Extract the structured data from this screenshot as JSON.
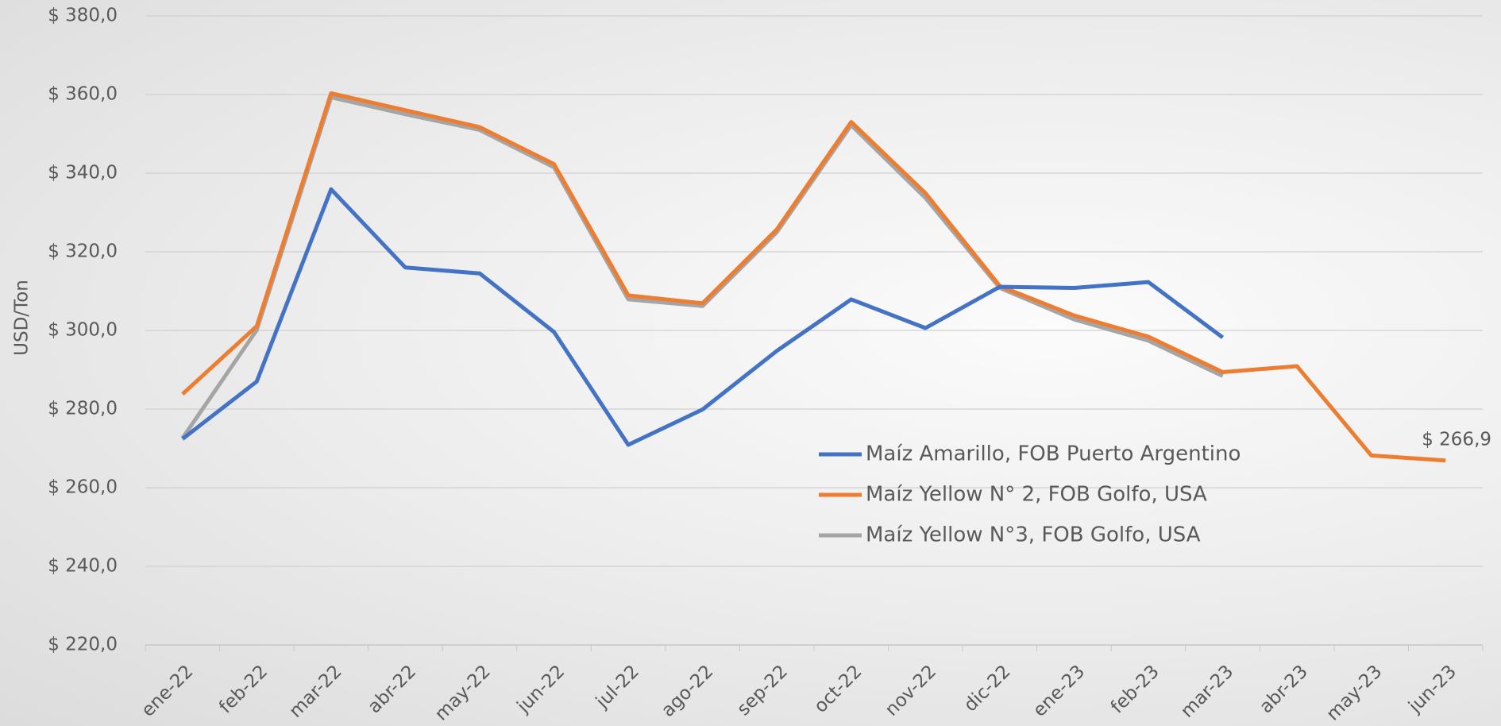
{
  "chart_data": {
    "type": "line",
    "y_label": "USD/Ton",
    "categories": [
      "ene-22",
      "feb-22",
      "mar-22",
      "abr-22",
      "may-22",
      "jun-22",
      "jul-22",
      "ago-22",
      "sep-22",
      "oct-22",
      "nov-22",
      "dic-22",
      "ene-23",
      "feb-23",
      "mar-23",
      "abr-23",
      "may-23",
      "jun-23"
    ],
    "series": [
      {
        "name": "Maíz Amarillo, FOB Puerto Argentino",
        "color": "#4472c4",
        "values": [
          272.4,
          287.0,
          335.9,
          316.0,
          314.5,
          299.6,
          270.9,
          279.9,
          294.8,
          307.9,
          300.6,
          311.1,
          310.8,
          312.3,
          298.2,
          null,
          null,
          null
        ]
      },
      {
        "name": "Maíz Yellow N° 2, FOB Golfo, USA",
        "color": "#ed7d31",
        "values": [
          283.8,
          301.1,
          360.3,
          356.0,
          351.7,
          342.3,
          308.9,
          306.9,
          325.7,
          353.0,
          334.9,
          311.3,
          303.8,
          298.4,
          289.4,
          290.9,
          268.2,
          266.9
        ],
        "value_labels": [
          null,
          null,
          null,
          null,
          null,
          null,
          null,
          null,
          null,
          null,
          null,
          null,
          null,
          null,
          null,
          null,
          null,
          "$ 266,9"
        ]
      },
      {
        "name": "Maíz Yellow N°3, FOB Golfo, USA",
        "color": "#a5a5a5",
        "values": [
          272.6,
          300.1,
          359.3,
          355.0,
          351.0,
          341.5,
          307.9,
          306.2,
          325.0,
          352.2,
          333.7,
          310.8,
          302.8,
          297.4,
          288.4,
          null,
          null,
          null
        ]
      }
    ],
    "ylim": [
      220,
      380
    ],
    "yticks": [
      {
        "value": 220,
        "label": "$ 220,0"
      },
      {
        "value": 240,
        "label": "$ 240,0"
      },
      {
        "value": 260,
        "label": "$ 260,0"
      },
      {
        "value": 280,
        "label": "$ 280,0"
      },
      {
        "value": 300,
        "label": "$ 300,0"
      },
      {
        "value": 320,
        "label": "$ 320,0"
      },
      {
        "value": 340,
        "label": "$ 340,0"
      },
      {
        "value": 360,
        "label": "$ 360,0"
      },
      {
        "value": 380,
        "label": "$ 380,0"
      }
    ],
    "grid": true
  }
}
